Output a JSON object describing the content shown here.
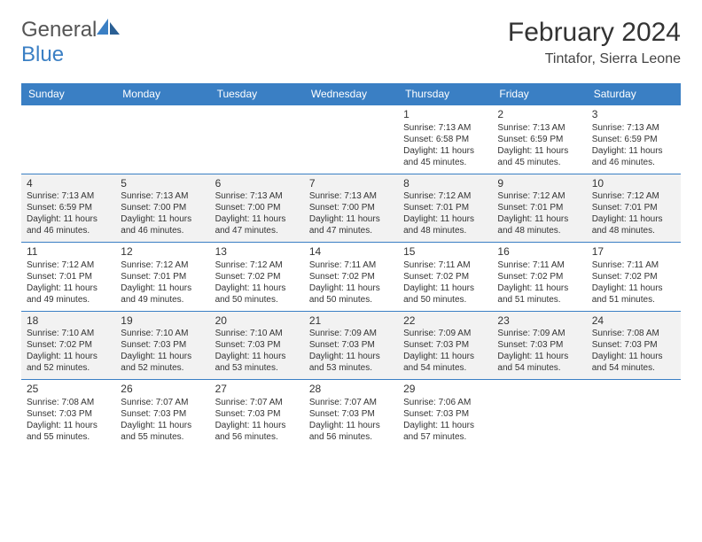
{
  "logo": {
    "text1": "General",
    "text2": "Blue"
  },
  "title": "February 2024",
  "location": "Tintafor, Sierra Leone",
  "colors": {
    "accent": "#3a7fc4",
    "grey": "#f2f2f2",
    "text": "#333"
  },
  "day_headers": [
    "Sunday",
    "Monday",
    "Tuesday",
    "Wednesday",
    "Thursday",
    "Friday",
    "Saturday"
  ],
  "weeks": [
    [
      null,
      null,
      null,
      null,
      {
        "n": "1",
        "sr": "Sunrise: 7:13 AM",
        "ss": "Sunset: 6:58 PM",
        "dl": "Daylight: 11 hours and 45 minutes."
      },
      {
        "n": "2",
        "sr": "Sunrise: 7:13 AM",
        "ss": "Sunset: 6:59 PM",
        "dl": "Daylight: 11 hours and 45 minutes."
      },
      {
        "n": "3",
        "sr": "Sunrise: 7:13 AM",
        "ss": "Sunset: 6:59 PM",
        "dl": "Daylight: 11 hours and 46 minutes."
      }
    ],
    [
      {
        "n": "4",
        "sr": "Sunrise: 7:13 AM",
        "ss": "Sunset: 6:59 PM",
        "dl": "Daylight: 11 hours and 46 minutes."
      },
      {
        "n": "5",
        "sr": "Sunrise: 7:13 AM",
        "ss": "Sunset: 7:00 PM",
        "dl": "Daylight: 11 hours and 46 minutes."
      },
      {
        "n": "6",
        "sr": "Sunrise: 7:13 AM",
        "ss": "Sunset: 7:00 PM",
        "dl": "Daylight: 11 hours and 47 minutes."
      },
      {
        "n": "7",
        "sr": "Sunrise: 7:13 AM",
        "ss": "Sunset: 7:00 PM",
        "dl": "Daylight: 11 hours and 47 minutes."
      },
      {
        "n": "8",
        "sr": "Sunrise: 7:12 AM",
        "ss": "Sunset: 7:01 PM",
        "dl": "Daylight: 11 hours and 48 minutes."
      },
      {
        "n": "9",
        "sr": "Sunrise: 7:12 AM",
        "ss": "Sunset: 7:01 PM",
        "dl": "Daylight: 11 hours and 48 minutes."
      },
      {
        "n": "10",
        "sr": "Sunrise: 7:12 AM",
        "ss": "Sunset: 7:01 PM",
        "dl": "Daylight: 11 hours and 48 minutes."
      }
    ],
    [
      {
        "n": "11",
        "sr": "Sunrise: 7:12 AM",
        "ss": "Sunset: 7:01 PM",
        "dl": "Daylight: 11 hours and 49 minutes."
      },
      {
        "n": "12",
        "sr": "Sunrise: 7:12 AM",
        "ss": "Sunset: 7:01 PM",
        "dl": "Daylight: 11 hours and 49 minutes."
      },
      {
        "n": "13",
        "sr": "Sunrise: 7:12 AM",
        "ss": "Sunset: 7:02 PM",
        "dl": "Daylight: 11 hours and 50 minutes."
      },
      {
        "n": "14",
        "sr": "Sunrise: 7:11 AM",
        "ss": "Sunset: 7:02 PM",
        "dl": "Daylight: 11 hours and 50 minutes."
      },
      {
        "n": "15",
        "sr": "Sunrise: 7:11 AM",
        "ss": "Sunset: 7:02 PM",
        "dl": "Daylight: 11 hours and 50 minutes."
      },
      {
        "n": "16",
        "sr": "Sunrise: 7:11 AM",
        "ss": "Sunset: 7:02 PM",
        "dl": "Daylight: 11 hours and 51 minutes."
      },
      {
        "n": "17",
        "sr": "Sunrise: 7:11 AM",
        "ss": "Sunset: 7:02 PM",
        "dl": "Daylight: 11 hours and 51 minutes."
      }
    ],
    [
      {
        "n": "18",
        "sr": "Sunrise: 7:10 AM",
        "ss": "Sunset: 7:02 PM",
        "dl": "Daylight: 11 hours and 52 minutes."
      },
      {
        "n": "19",
        "sr": "Sunrise: 7:10 AM",
        "ss": "Sunset: 7:03 PM",
        "dl": "Daylight: 11 hours and 52 minutes."
      },
      {
        "n": "20",
        "sr": "Sunrise: 7:10 AM",
        "ss": "Sunset: 7:03 PM",
        "dl": "Daylight: 11 hours and 53 minutes."
      },
      {
        "n": "21",
        "sr": "Sunrise: 7:09 AM",
        "ss": "Sunset: 7:03 PM",
        "dl": "Daylight: 11 hours and 53 minutes."
      },
      {
        "n": "22",
        "sr": "Sunrise: 7:09 AM",
        "ss": "Sunset: 7:03 PM",
        "dl": "Daylight: 11 hours and 54 minutes."
      },
      {
        "n": "23",
        "sr": "Sunrise: 7:09 AM",
        "ss": "Sunset: 7:03 PM",
        "dl": "Daylight: 11 hours and 54 minutes."
      },
      {
        "n": "24",
        "sr": "Sunrise: 7:08 AM",
        "ss": "Sunset: 7:03 PM",
        "dl": "Daylight: 11 hours and 54 minutes."
      }
    ],
    [
      {
        "n": "25",
        "sr": "Sunrise: 7:08 AM",
        "ss": "Sunset: 7:03 PM",
        "dl": "Daylight: 11 hours and 55 minutes."
      },
      {
        "n": "26",
        "sr": "Sunrise: 7:07 AM",
        "ss": "Sunset: 7:03 PM",
        "dl": "Daylight: 11 hours and 55 minutes."
      },
      {
        "n": "27",
        "sr": "Sunrise: 7:07 AM",
        "ss": "Sunset: 7:03 PM",
        "dl": "Daylight: 11 hours and 56 minutes."
      },
      {
        "n": "28",
        "sr": "Sunrise: 7:07 AM",
        "ss": "Sunset: 7:03 PM",
        "dl": "Daylight: 11 hours and 56 minutes."
      },
      {
        "n": "29",
        "sr": "Sunrise: 7:06 AM",
        "ss": "Sunset: 7:03 PM",
        "dl": "Daylight: 11 hours and 57 minutes."
      },
      null,
      null
    ]
  ]
}
